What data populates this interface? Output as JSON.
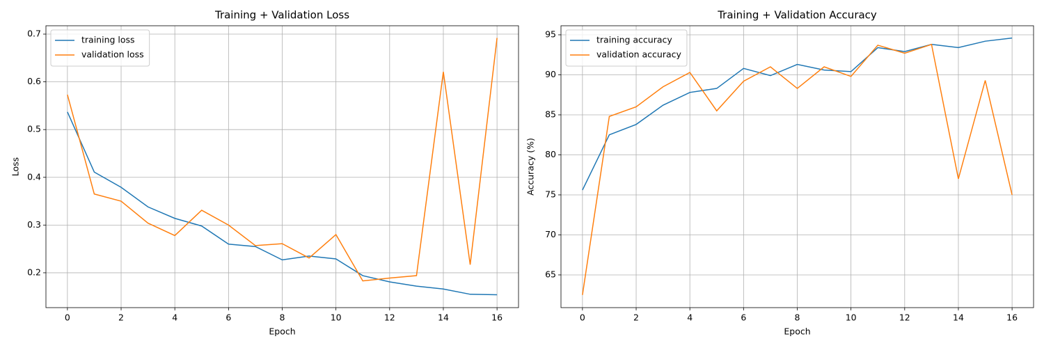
{
  "chart_data": [
    {
      "type": "line",
      "title": "Training + Validation Loss",
      "xlabel": "Epoch",
      "ylabel": "Loss",
      "x": [
        0,
        1,
        2,
        3,
        4,
        5,
        6,
        7,
        8,
        9,
        10,
        11,
        12,
        13,
        14,
        15,
        16
      ],
      "xlim": [
        -0.8,
        16.8
      ],
      "ylim": [
        0.127,
        0.7175
      ],
      "xticks": [
        0,
        2,
        4,
        6,
        8,
        10,
        12,
        14,
        16
      ],
      "yticks": [
        0.2,
        0.3,
        0.4,
        0.5,
        0.6,
        0.7
      ],
      "grid": true,
      "legend": "upper left",
      "series": [
        {
          "name": "training loss",
          "color": "#1f77b4",
          "values": [
            0.537,
            0.411,
            0.379,
            0.338,
            0.314,
            0.298,
            0.26,
            0.255,
            0.227,
            0.235,
            0.229,
            0.194,
            0.181,
            0.172,
            0.166,
            0.155,
            0.154
          ]
        },
        {
          "name": "validation loss",
          "color": "#ff7f0e",
          "values": [
            0.573,
            0.365,
            0.35,
            0.304,
            0.278,
            0.331,
            0.3,
            0.257,
            0.261,
            0.231,
            0.28,
            0.183,
            0.189,
            0.194,
            0.621,
            0.217,
            0.692
          ]
        }
      ]
    },
    {
      "type": "line",
      "title": "Training + Validation Accuracy",
      "xlabel": "Epoch",
      "ylabel": "Accuracy (%)",
      "x": [
        0,
        1,
        2,
        3,
        4,
        5,
        6,
        7,
        8,
        9,
        10,
        11,
        12,
        13,
        14,
        15,
        16
      ],
      "xlim": [
        -0.8,
        16.8
      ],
      "ylim": [
        60.91,
        96.13
      ],
      "xticks": [
        0,
        2,
        4,
        6,
        8,
        10,
        12,
        14,
        16
      ],
      "yticks": [
        65,
        70,
        75,
        80,
        85,
        90,
        95
      ],
      "grid": true,
      "legend": "upper left",
      "series": [
        {
          "name": "training accuracy",
          "color": "#1f77b4",
          "values": [
            75.6,
            82.5,
            83.8,
            86.2,
            87.8,
            88.3,
            90.8,
            89.9,
            91.3,
            90.6,
            90.4,
            93.4,
            92.9,
            93.8,
            93.4,
            94.2,
            94.6
          ]
        },
        {
          "name": "validation accuracy",
          "color": "#ff7f0e",
          "values": [
            62.5,
            84.8,
            86.0,
            88.5,
            90.3,
            85.5,
            89.2,
            91.0,
            88.3,
            91.0,
            89.8,
            93.7,
            92.7,
            93.8,
            77.0,
            89.3,
            75.0
          ]
        }
      ]
    }
  ]
}
